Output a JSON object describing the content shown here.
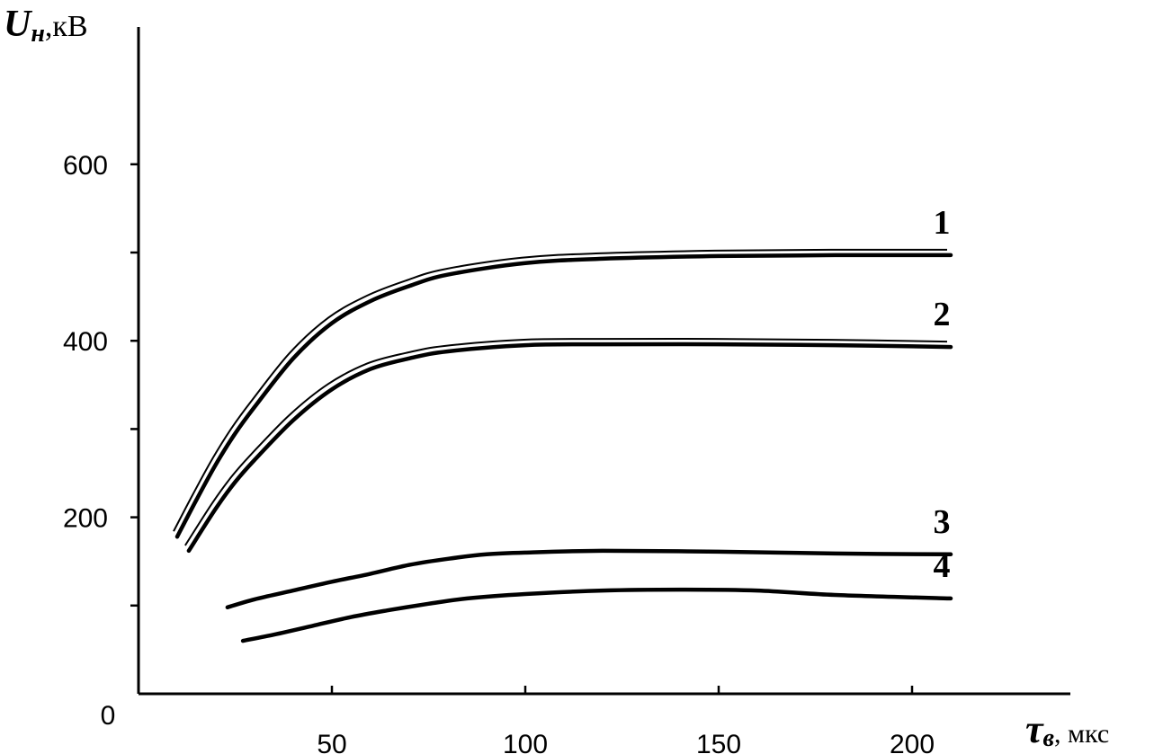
{
  "chart_data": {
    "type": "line",
    "ylabel": {
      "symbol": "U",
      "subscript": "н",
      "unit": ",кВ"
    },
    "xlabel": {
      "symbol": "τ",
      "subscript": "в",
      "unit": ", мкс"
    },
    "origin_label": "0",
    "xlim": [
      0,
      240
    ],
    "ylim": [
      0,
      720
    ],
    "x_ticks": [
      50,
      100,
      150,
      200
    ],
    "x_tick_labels": [
      "50",
      "100",
      "150",
      "200"
    ],
    "y_ticks": [
      200,
      400,
      600
    ],
    "y_tick_labels": [
      "200",
      "400",
      "600"
    ],
    "y_minor_ticks": [
      100,
      300,
      500
    ],
    "grid": false,
    "series": [
      {
        "name": "1",
        "style": "double",
        "x": [
          10,
          15,
          20,
          25,
          30,
          40,
          50,
          60,
          70,
          80,
          100,
          120,
          150,
          180,
          210
        ],
        "y": [
          178,
          220,
          260,
          295,
          325,
          380,
          420,
          445,
          462,
          475,
          488,
          493,
          496,
          497,
          497
        ]
      },
      {
        "name": "2",
        "style": "double",
        "x": [
          13,
          20,
          25,
          30,
          40,
          50,
          60,
          70,
          80,
          100,
          120,
          150,
          180,
          210
        ],
        "y": [
          162,
          210,
          240,
          265,
          310,
          345,
          368,
          380,
          388,
          395,
          396,
          396,
          395,
          393
        ]
      },
      {
        "name": "3",
        "style": "single",
        "x": [
          23,
          30,
          40,
          50,
          60,
          70,
          80,
          90,
          100,
          120,
          150,
          180,
          210
        ],
        "y": [
          98,
          107,
          117,
          127,
          136,
          146,
          153,
          158,
          160,
          162,
          161,
          159,
          158
        ]
      },
      {
        "name": "4",
        "style": "single",
        "x": [
          27,
          35,
          45,
          55,
          65,
          75,
          85,
          100,
          120,
          140,
          160,
          180,
          210
        ],
        "y": [
          60,
          67,
          77,
          87,
          95,
          102,
          108,
          113,
          117,
          118,
          117,
          112,
          108
        ]
      }
    ]
  }
}
